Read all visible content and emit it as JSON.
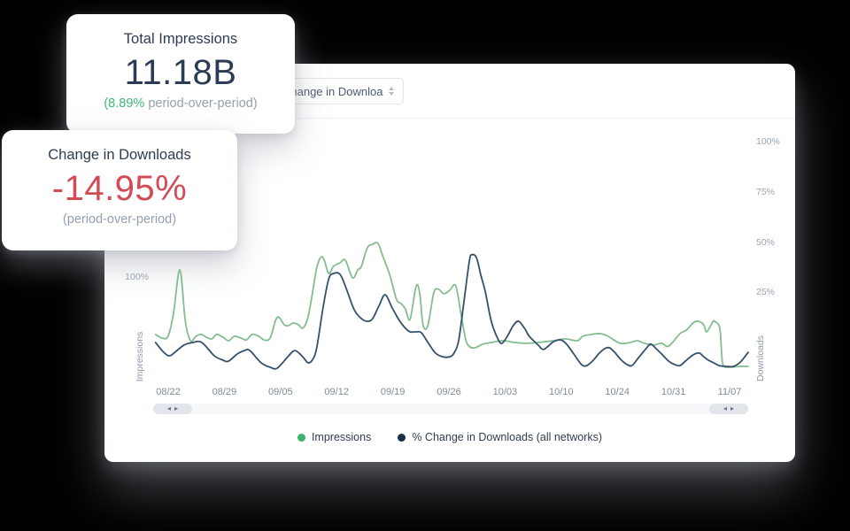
{
  "cards": {
    "impressions": {
      "title": "Total Impressions",
      "value": "11.18B",
      "delta_green": "(8.89%",
      "delta_gray": " period-over-period)",
      "delta_color": "#3db974"
    },
    "downloads": {
      "title": "Change in Downloads",
      "value": "-14.95%",
      "sub": "(period-over-period)",
      "value_color": "#d24b55"
    }
  },
  "panel": {
    "metric_select": {
      "value": "Change in Downloads"
    },
    "scrollbar": {
      "left_arrow": "◂",
      "right_arrow": "▸"
    }
  },
  "chart_data": {
    "type": "line",
    "title": "",
    "xlabel": "",
    "ylabel_left": "Impressions",
    "ylabel_right": "Downloads",
    "grid": false,
    "legend_position": "bottom-center",
    "x_tick_labels": [
      "08/22",
      "08/29",
      "09/05",
      "09/12",
      "09/19",
      "09/26",
      "10/03",
      "10/10",
      "10/24",
      "10/31",
      "11/07"
    ],
    "left_axis": {
      "title": "Impressions",
      "tick_label": "100%",
      "tick_y_frac": 0.582
    },
    "right_axis": {
      "title": "Downloads",
      "unit": "%",
      "range_shown": [
        25,
        100
      ],
      "ticks": [
        {
          "label": "100%",
          "value": 100
        },
        {
          "label": "75%",
          "value": 75
        },
        {
          "label": "50%",
          "value": 50
        },
        {
          "label": "25%",
          "value": 25
        }
      ]
    },
    "series": [
      {
        "name": "Impressions",
        "color": "#84bd90",
        "stroke_width": 1.8,
        "points": [
          [
            0.001,
            4
          ],
          [
            0.012,
            2.2
          ],
          [
            0.022,
            3.1
          ],
          [
            0.031,
            14
          ],
          [
            0.042,
            36.2
          ],
          [
            0.051,
            11
          ],
          [
            0.06,
            0.9
          ],
          [
            0.069,
            3.1
          ],
          [
            0.078,
            4
          ],
          [
            0.087,
            2.6
          ],
          [
            0.096,
            1.8
          ],
          [
            0.104,
            4
          ],
          [
            0.115,
            2.6
          ],
          [
            0.124,
            0.9
          ],
          [
            0.134,
            3.1
          ],
          [
            0.145,
            2.2
          ],
          [
            0.154,
            1.3
          ],
          [
            0.164,
            4
          ],
          [
            0.175,
            3.1
          ],
          [
            0.184,
            1.3
          ],
          [
            0.194,
            2.2
          ],
          [
            0.204,
            11.5
          ],
          [
            0.21,
            12.3
          ],
          [
            0.218,
            8.8
          ],
          [
            0.225,
            8.4
          ],
          [
            0.233,
            9.7
          ],
          [
            0.242,
            8.8
          ],
          [
            0.249,
            7.1
          ],
          [
            0.257,
            11.5
          ],
          [
            0.264,
            22
          ],
          [
            0.272,
            36.2
          ],
          [
            0.279,
            42.3
          ],
          [
            0.285,
            41.4
          ],
          [
            0.293,
            34.4
          ],
          [
            0.301,
            37.9
          ],
          [
            0.312,
            39.7
          ],
          [
            0.321,
            41
          ],
          [
            0.333,
            32.2
          ],
          [
            0.342,
            36.2
          ],
          [
            0.348,
            37.9
          ],
          [
            0.358,
            47.2
          ],
          [
            0.367,
            48.9
          ],
          [
            0.376,
            49.4
          ],
          [
            0.385,
            42.3
          ],
          [
            0.396,
            33.5
          ],
          [
            0.407,
            21.6
          ],
          [
            0.415,
            19.4
          ],
          [
            0.422,
            16.8
          ],
          [
            0.43,
            11.5
          ],
          [
            0.44,
            27.8
          ],
          [
            0.446,
            25.1
          ],
          [
            0.452,
            8.8
          ],
          [
            0.46,
            8.4
          ],
          [
            0.47,
            24.7
          ],
          [
            0.478,
            26.5
          ],
          [
            0.487,
            24.3
          ],
          [
            0.497,
            26
          ],
          [
            0.507,
            28.2
          ],
          [
            0.516,
            14.1
          ],
          [
            0.524,
            1.3
          ],
          [
            0.531,
            -2.2
          ],
          [
            0.54,
            -2.6
          ],
          [
            0.552,
            -0.9
          ],
          [
            0.567,
            0
          ],
          [
            0.587,
            0.9
          ],
          [
            0.607,
            0
          ],
          [
            0.627,
            -0.4
          ],
          [
            0.646,
            0
          ],
          [
            0.672,
            0.9
          ],
          [
            0.691,
            1.8
          ],
          [
            0.712,
            0.9
          ],
          [
            0.721,
            3.1
          ],
          [
            0.736,
            4
          ],
          [
            0.751,
            4.4
          ],
          [
            0.764,
            3.1
          ],
          [
            0.784,
            -0.4
          ],
          [
            0.801,
            0
          ],
          [
            0.813,
            0.9
          ],
          [
            0.825,
            -0.4
          ],
          [
            0.84,
            -1.3
          ],
          [
            0.854,
            -0.4
          ],
          [
            0.866,
            -1.8
          ],
          [
            0.885,
            4.4
          ],
          [
            0.896,
            6.2
          ],
          [
            0.907,
            9.7
          ],
          [
            0.915,
            10.6
          ],
          [
            0.925,
            8.8
          ],
          [
            0.93,
            5.3
          ],
          [
            0.94,
            10.1
          ],
          [
            0.943,
            10.6
          ],
          [
            0.952,
            7.5
          ],
          [
            0.955,
            -4.4
          ],
          [
            0.958,
            -11.5
          ],
          [
            0.97,
            -12.3
          ],
          [
            0.985,
            -11.9
          ],
          [
            1,
            -11.9
          ]
        ]
      },
      {
        "name": "% Change in Downloads (all networks)",
        "color": "#34506b",
        "stroke_width": 1.8,
        "points": [
          [
            0.001,
            0
          ],
          [
            0.015,
            -4.9
          ],
          [
            0.025,
            -6.6
          ],
          [
            0.037,
            -4
          ],
          [
            0.049,
            -1.3
          ],
          [
            0.064,
            0
          ],
          [
            0.079,
            0
          ],
          [
            0.1,
            -6.6
          ],
          [
            0.115,
            -8.8
          ],
          [
            0.124,
            -9.3
          ],
          [
            0.139,
            -5.7
          ],
          [
            0.151,
            -4
          ],
          [
            0.16,
            -4
          ],
          [
            0.179,
            -10.1
          ],
          [
            0.194,
            -12.3
          ],
          [
            0.206,
            -12.8
          ],
          [
            0.224,
            -7.1
          ],
          [
            0.236,
            -4
          ],
          [
            0.249,
            -7.1
          ],
          [
            0.258,
            -10.1
          ],
          [
            0.266,
            -8.4
          ],
          [
            0.273,
            -2.2
          ],
          [
            0.284,
            18.5
          ],
          [
            0.293,
            31.7
          ],
          [
            0.301,
            34.4
          ],
          [
            0.312,
            34
          ],
          [
            0.322,
            27.3
          ],
          [
            0.336,
            16.3
          ],
          [
            0.348,
            11.9
          ],
          [
            0.358,
            10.6
          ],
          [
            0.367,
            11.9
          ],
          [
            0.378,
            18.5
          ],
          [
            0.388,
            23.8
          ],
          [
            0.4,
            17.2
          ],
          [
            0.41,
            11.9
          ],
          [
            0.421,
            7.5
          ],
          [
            0.43,
            5.3
          ],
          [
            0.44,
            5.3
          ],
          [
            0.449,
            4.9
          ],
          [
            0.461,
            -0.4
          ],
          [
            0.473,
            -5.3
          ],
          [
            0.485,
            -7.1
          ],
          [
            0.497,
            -7.1
          ],
          [
            0.504,
            -5.3
          ],
          [
            0.512,
            0.9
          ],
          [
            0.521,
            20.7
          ],
          [
            0.53,
            40.6
          ],
          [
            0.534,
            43.7
          ],
          [
            0.542,
            42.3
          ],
          [
            0.549,
            34
          ],
          [
            0.557,
            25.1
          ],
          [
            0.567,
            10.6
          ],
          [
            0.578,
            1.8
          ],
          [
            0.585,
            -0.4
          ],
          [
            0.594,
            3.1
          ],
          [
            0.604,
            8.4
          ],
          [
            0.613,
            10.6
          ],
          [
            0.624,
            6.6
          ],
          [
            0.631,
            3.1
          ],
          [
            0.646,
            -1.3
          ],
          [
            0.654,
            -3.5
          ],
          [
            0.663,
            -1.8
          ],
          [
            0.672,
            0.4
          ],
          [
            0.684,
            1.3
          ],
          [
            0.694,
            -0.9
          ],
          [
            0.706,
            -5.7
          ],
          [
            0.719,
            -11
          ],
          [
            0.728,
            -11.5
          ],
          [
            0.739,
            -8.8
          ],
          [
            0.749,
            -5.3
          ],
          [
            0.758,
            -3.1
          ],
          [
            0.766,
            -2.6
          ],
          [
            0.775,
            -4.9
          ],
          [
            0.785,
            -8.4
          ],
          [
            0.796,
            -11
          ],
          [
            0.804,
            -11.5
          ],
          [
            0.813,
            -8.4
          ],
          [
            0.824,
            -4.4
          ],
          [
            0.833,
            -1.3
          ],
          [
            0.837,
            -0.9
          ],
          [
            0.845,
            -3.1
          ],
          [
            0.854,
            -5.7
          ],
          [
            0.866,
            -9.3
          ],
          [
            0.876,
            -11
          ],
          [
            0.885,
            -11.5
          ],
          [
            0.894,
            -9.3
          ],
          [
            0.903,
            -7.1
          ],
          [
            0.91,
            -5.7
          ],
          [
            0.918,
            -5.3
          ],
          [
            0.925,
            -7.1
          ],
          [
            0.933,
            -8.8
          ],
          [
            0.942,
            -10.1
          ],
          [
            0.951,
            -11.5
          ],
          [
            0.963,
            -11.9
          ],
          [
            0.975,
            -11.9
          ],
          [
            0.987,
            -9.7
          ],
          [
            1,
            -4.9
          ]
        ]
      }
    ],
    "legend": [
      {
        "label": "Impressions",
        "color": "#3cb470"
      },
      {
        "label": "% Change in Downloads (all networks)",
        "color": "#17304a"
      }
    ]
  }
}
